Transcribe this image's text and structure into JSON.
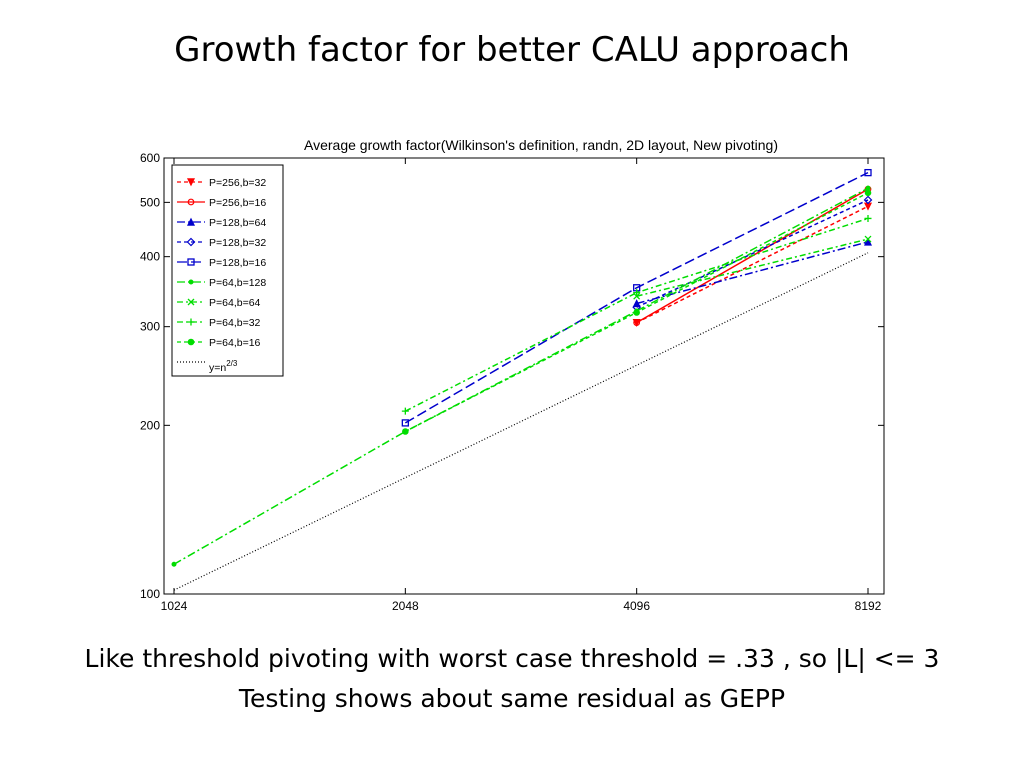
{
  "slide": {
    "title": "Growth factor for better CALU approach",
    "caption_line1": "Like threshold pivoting with worst case threshold = .33 ,  so |L| <= 3",
    "caption_line2": "Testing shows about same residual as GEPP"
  },
  "chart_data": {
    "type": "line",
    "title": "Average growth factor(Wilkinson's definition, randn, 2D layout, New pivoting)",
    "xlabel": "",
    "ylabel": "",
    "x_scale": "log2",
    "y_scale": "log",
    "xlim": [
      1024,
      8192
    ],
    "ylim": [
      100,
      600
    ],
    "x_ticks": [
      1024,
      2048,
      4096,
      8192
    ],
    "x_tick_labels": [
      "1024",
      "2048",
      "4096",
      "8192"
    ],
    "y_ticks": [
      100,
      200,
      300,
      400,
      500,
      600
    ],
    "y_tick_labels": [
      "100",
      "200",
      "300",
      "400",
      "500",
      "600"
    ],
    "grid": false,
    "legend_position": "top-left",
    "series": [
      {
        "name": "P=256,b=32",
        "color": "#ff0000",
        "dash": "4,3",
        "marker": "triangle-down",
        "points": [
          [
            4096,
            305
          ],
          [
            8192,
            492
          ]
        ]
      },
      {
        "name": "P=256,b=16",
        "color": "#ff0000",
        "dash": "",
        "marker": "circle",
        "points": [
          [
            4096,
            305
          ],
          [
            8192,
            528
          ]
        ]
      },
      {
        "name": "P=128,b=64",
        "color": "#0000cc",
        "dash": "8,3,2,3",
        "marker": "triangle-up",
        "points": [
          [
            4096,
            330
          ],
          [
            8192,
            425
          ]
        ]
      },
      {
        "name": "P=128,b=32",
        "color": "#0000cc",
        "dash": "4,3",
        "marker": "diamond",
        "points": [
          [
            4096,
            325
          ],
          [
            8192,
            505
          ]
        ]
      },
      {
        "name": "P=128,b=16",
        "color": "#0000cc",
        "dash": "10,4",
        "marker": "square",
        "points": [
          [
            2048,
            202
          ],
          [
            4096,
            352
          ],
          [
            8192,
            565
          ]
        ]
      },
      {
        "name": "P=64,b=128",
        "color": "#00dd00",
        "dash": "8,3,2,3",
        "marker": "dot",
        "points": [
          [
            1024,
            113
          ],
          [
            2048,
            195
          ],
          [
            4096,
            320
          ],
          [
            8192,
            530
          ]
        ]
      },
      {
        "name": "P=64,b=64",
        "color": "#00dd00",
        "dash": "6,3,2,3",
        "marker": "x",
        "points": [
          [
            4096,
            340
          ],
          [
            8192,
            430
          ]
        ]
      },
      {
        "name": "P=64,b=32",
        "color": "#00dd00",
        "dash": "6,3,2,3",
        "marker": "plus",
        "points": [
          [
            2048,
            212
          ],
          [
            4096,
            345
          ],
          [
            8192,
            468
          ]
        ]
      },
      {
        "name": "P=64,b=16",
        "color": "#00dd00",
        "dash": "4,3",
        "marker": "filled-circle",
        "points": [
          [
            2048,
            195
          ],
          [
            4096,
            318
          ],
          [
            8192,
            520
          ]
        ]
      },
      {
        "name": "y=n^(2/3)",
        "legend_label_base": "y=n",
        "legend_label_exp": "2/3",
        "color": "#000000",
        "dash": "1,2",
        "marker": "none",
        "points": [
          [
            1024,
            101.6
          ],
          [
            2048,
            161.3
          ],
          [
            4096,
            256
          ],
          [
            8192,
            406.4
          ]
        ]
      }
    ]
  }
}
